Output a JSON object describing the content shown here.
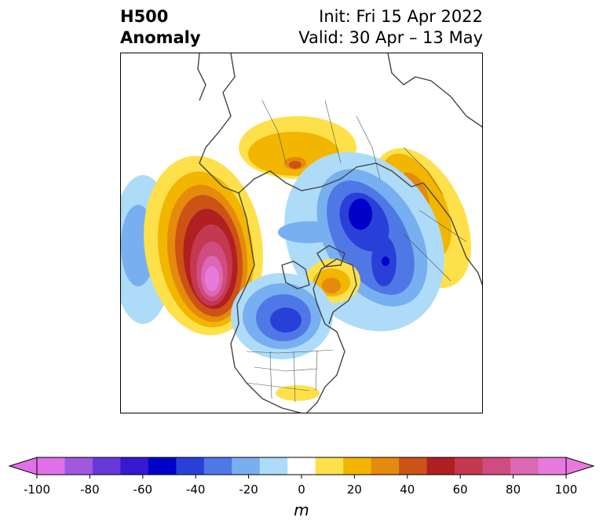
{
  "header": {
    "variable_line1": "H500",
    "variable_line2": "Anomaly",
    "init": "Init: Fri 15 Apr 2022",
    "valid": "Valid: 30 Apr – 13 May"
  },
  "map": {
    "projection": "north-polar-stereographic",
    "field": "500 hPa geopotential height anomaly",
    "anomaly_centers": [
      {
        "region": "NE Pacific / Gulf of Alaska",
        "sign": "positive",
        "peak_m": 95
      },
      {
        "region": "Central Pacific",
        "sign": "negative",
        "peak_m": -40
      },
      {
        "region": "Arctic / Barents-Kara Sea",
        "sign": "negative",
        "peak_m": -65
      },
      {
        "region": "Central Canada / Hudson Bay",
        "sign": "negative",
        "peak_m": -60
      },
      {
        "region": "Greenland",
        "sign": "positive",
        "peak_m": 40
      },
      {
        "region": "Eastern Siberia",
        "sign": "positive",
        "peak_m": 45
      },
      {
        "region": "Europe / Western Russia",
        "sign": "positive",
        "peak_m": 35
      },
      {
        "region": "Gulf of Mexico",
        "sign": "positive",
        "peak_m": 15
      }
    ]
  },
  "colorbar": {
    "unit": "m",
    "extend": "both",
    "boundaries": [
      -100,
      -90,
      -80,
      -70,
      -60,
      -50,
      -40,
      -30,
      -20,
      -10,
      10,
      20,
      30,
      40,
      50,
      60,
      70,
      80,
      90,
      100
    ],
    "colors": [
      "#e070e8",
      "#a058e0",
      "#6838d8",
      "#3818d0",
      "#0000c8",
      "#2840d8",
      "#4f78e6",
      "#78aff0",
      "#aedcf8",
      "#ffffff",
      "#fee14a",
      "#f2b500",
      "#e48a0c",
      "#cc5216",
      "#b02020",
      "#c43850",
      "#d04c80",
      "#dc68b4",
      "#e87ade"
    ],
    "tick_values": [
      -100,
      -80,
      -60,
      -40,
      -20,
      0,
      20,
      40,
      60,
      80,
      100
    ],
    "tick_labels": [
      "-100",
      "-80",
      "-60",
      "-40",
      "-20",
      "0",
      "20",
      "40",
      "60",
      "80",
      "100"
    ]
  }
}
